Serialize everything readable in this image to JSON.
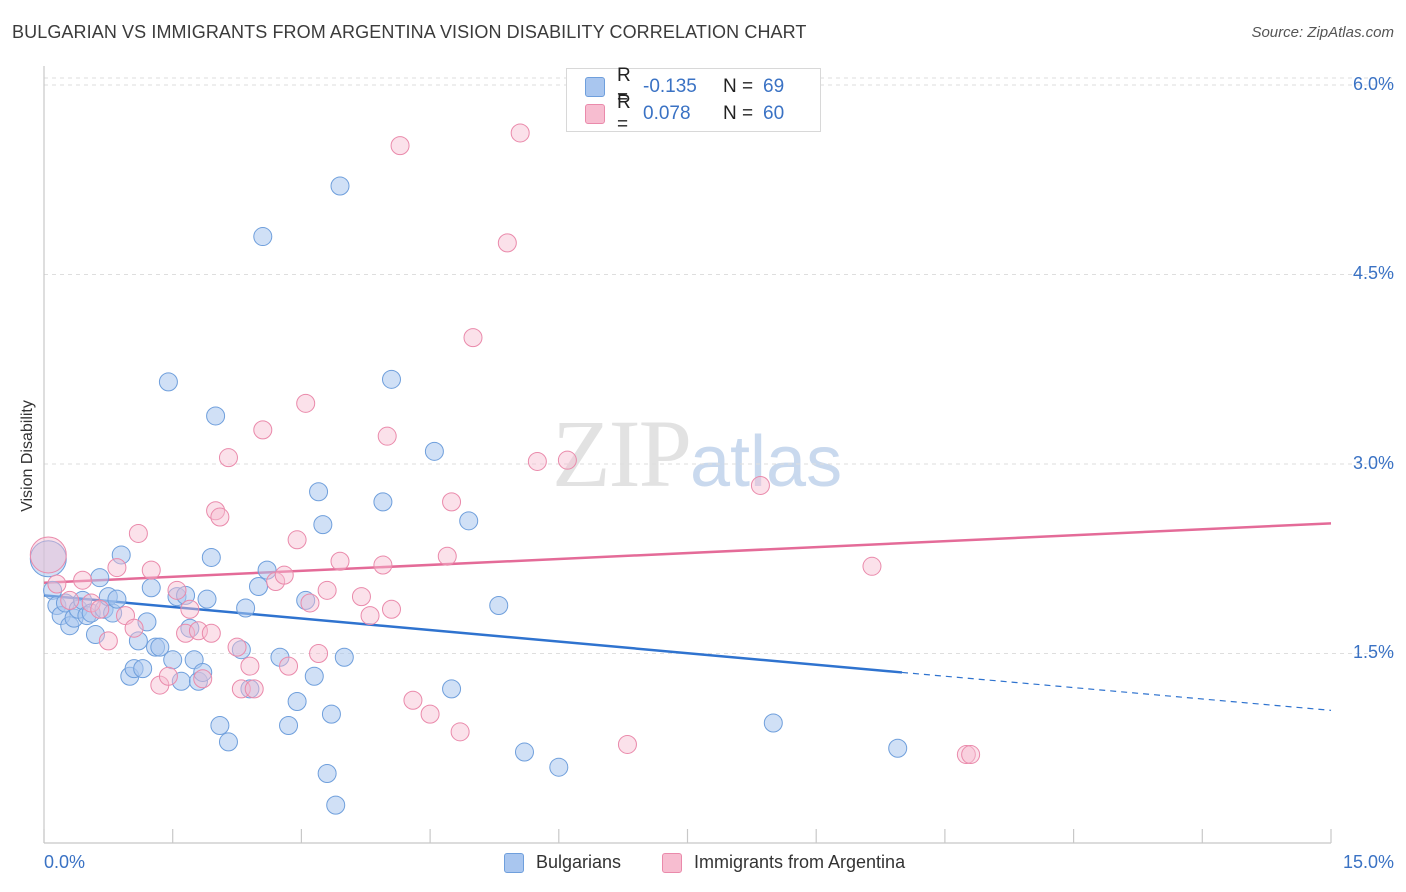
{
  "title": "BULGARIAN VS IMMIGRANTS FROM ARGENTINA VISION DISABILITY CORRELATION CHART",
  "source": "Source: ZipAtlas.com",
  "watermark": {
    "zip": "ZIP",
    "atlas": "atlas"
  },
  "legend_top": {
    "rows": [
      {
        "r_label": "R =",
        "r_value": "-0.135",
        "n_label": "N =",
        "n_value": "69"
      },
      {
        "r_label": "R =",
        "r_value": "0.078",
        "n_label": "N =",
        "n_value": "60"
      }
    ]
  },
  "legend_bottom": {
    "series1": "Bulgarians",
    "series2": "Immigrants from Argentina"
  },
  "colors": {
    "blue_fill": "#a9c6ef",
    "blue_stroke": "#6f9fdc",
    "blue_line": "#2f73cf",
    "pink_fill": "#f7bdd0",
    "pink_stroke": "#ea8aab",
    "pink_line": "#e46b98",
    "grid": "#dedede",
    "axis_text": "#3a72c4"
  },
  "chart_data": {
    "type": "scatter",
    "title": "BULGARIAN VS IMMIGRANTS FROM ARGENTINA VISION DISABILITY CORRELATION CHART",
    "xlabel": "",
    "ylabel": "Vision Disability",
    "xlim": [
      0,
      15
    ],
    "ylim": [
      0,
      6.15
    ],
    "x_tick_labels": [
      "0.0%",
      "15.0%"
    ],
    "y_ticks": [
      1.5,
      3.0,
      4.5,
      6.0
    ],
    "y_tick_labels": [
      "1.5%",
      "3.0%",
      "4.5%",
      "6.0%"
    ],
    "series": [
      {
        "name": "Bulgarians",
        "r": -0.135,
        "n": 69,
        "trend": {
          "x0": 0,
          "y0": 1.96,
          "x1": 10.0,
          "y1": 1.35,
          "dash_x1": 15.0,
          "dash_y1": 1.05
        },
        "points": [
          [
            0.05,
            2.25,
            18
          ],
          [
            0.1,
            2.0,
            9
          ],
          [
            0.15,
            1.88,
            9
          ],
          [
            0.2,
            1.8,
            9
          ],
          [
            0.25,
            1.9,
            9
          ],
          [
            0.3,
            1.72,
            9
          ],
          [
            0.35,
            1.78,
            9
          ],
          [
            0.4,
            1.85,
            9
          ],
          [
            0.45,
            1.92,
            9
          ],
          [
            0.5,
            1.8,
            9
          ],
          [
            0.55,
            1.82,
            9
          ],
          [
            0.6,
            1.65,
            9
          ],
          [
            0.65,
            2.1,
            9
          ],
          [
            0.7,
            1.85,
            9
          ],
          [
            0.75,
            1.95,
            9
          ],
          [
            0.8,
            1.82,
            9
          ],
          [
            0.85,
            1.93,
            9
          ],
          [
            0.9,
            2.28,
            9
          ],
          [
            1.0,
            1.32,
            9
          ],
          [
            1.05,
            1.38,
            9
          ],
          [
            1.1,
            1.6,
            9
          ],
          [
            1.15,
            1.38,
            9
          ],
          [
            1.2,
            1.75,
            9
          ],
          [
            1.25,
            2.02,
            9
          ],
          [
            1.3,
            1.55,
            9
          ],
          [
            1.35,
            1.55,
            9
          ],
          [
            1.45,
            3.65,
            9
          ],
          [
            1.5,
            1.45,
            9
          ],
          [
            1.55,
            1.95,
            9
          ],
          [
            1.6,
            1.28,
            9
          ],
          [
            1.65,
            1.96,
            9
          ],
          [
            1.7,
            1.7,
            9
          ],
          [
            1.75,
            1.45,
            9
          ],
          [
            1.8,
            1.28,
            9
          ],
          [
            1.85,
            1.35,
            9
          ],
          [
            1.9,
            1.93,
            9
          ],
          [
            1.95,
            2.26,
            9
          ],
          [
            2.0,
            3.38,
            9
          ],
          [
            2.05,
            0.93,
            9
          ],
          [
            2.15,
            0.8,
            9
          ],
          [
            2.3,
            1.53,
            9
          ],
          [
            2.35,
            1.86,
            9
          ],
          [
            2.4,
            1.22,
            9
          ],
          [
            2.5,
            2.03,
            9
          ],
          [
            2.55,
            4.8,
            9
          ],
          [
            2.6,
            2.16,
            9
          ],
          [
            2.75,
            1.47,
            9
          ],
          [
            2.85,
            0.93,
            9
          ],
          [
            2.95,
            1.12,
            9
          ],
          [
            3.05,
            1.92,
            9
          ],
          [
            3.15,
            1.32,
            9
          ],
          [
            3.2,
            2.78,
            9
          ],
          [
            3.25,
            2.52,
            9
          ],
          [
            3.3,
            0.55,
            9
          ],
          [
            3.35,
            1.02,
            9
          ],
          [
            3.4,
            0.3,
            9
          ],
          [
            3.45,
            5.2,
            9
          ],
          [
            3.5,
            1.47,
            9
          ],
          [
            3.95,
            2.7,
            9
          ],
          [
            4.05,
            3.67,
            9
          ],
          [
            4.55,
            3.1,
            9
          ],
          [
            4.75,
            1.22,
            9
          ],
          [
            4.95,
            2.55,
            9
          ],
          [
            5.3,
            1.88,
            9
          ],
          [
            5.6,
            0.72,
            9
          ],
          [
            6.0,
            0.6,
            9
          ],
          [
            8.5,
            0.95,
            9
          ],
          [
            9.95,
            0.75,
            9
          ]
        ]
      },
      {
        "name": "Immigrants from Argentina",
        "r": 0.078,
        "n": 60,
        "trend": {
          "x0": 0,
          "y0": 2.06,
          "x1": 15.0,
          "y1": 2.53
        },
        "points": [
          [
            0.05,
            2.28,
            18
          ],
          [
            0.15,
            2.05,
            9
          ],
          [
            0.3,
            1.92,
            9
          ],
          [
            0.45,
            2.08,
            9
          ],
          [
            0.55,
            1.9,
            9
          ],
          [
            0.65,
            1.85,
            9
          ],
          [
            0.75,
            1.6,
            9
          ],
          [
            0.85,
            2.18,
            9
          ],
          [
            0.95,
            1.8,
            9
          ],
          [
            1.05,
            1.7,
            9
          ],
          [
            1.1,
            2.45,
            9
          ],
          [
            1.25,
            2.16,
            9
          ],
          [
            1.35,
            1.25,
            9
          ],
          [
            1.45,
            1.32,
            9
          ],
          [
            1.55,
            2.0,
            9
          ],
          [
            1.65,
            1.66,
            9
          ],
          [
            1.7,
            1.85,
            9
          ],
          [
            1.8,
            1.68,
            9
          ],
          [
            1.85,
            1.3,
            9
          ],
          [
            1.95,
            1.66,
            9
          ],
          [
            2.0,
            2.63,
            9
          ],
          [
            2.05,
            2.58,
            9
          ],
          [
            2.15,
            3.05,
            9
          ],
          [
            2.25,
            1.55,
            9
          ],
          [
            2.3,
            1.22,
            9
          ],
          [
            2.4,
            1.4,
            9
          ],
          [
            2.45,
            1.22,
            9
          ],
          [
            2.55,
            3.27,
            9
          ],
          [
            2.7,
            2.07,
            9
          ],
          [
            2.8,
            2.12,
            9
          ],
          [
            2.85,
            1.4,
            9
          ],
          [
            2.95,
            2.4,
            9
          ],
          [
            3.05,
            3.48,
            9
          ],
          [
            3.1,
            1.9,
            9
          ],
          [
            3.2,
            1.5,
            9
          ],
          [
            3.3,
            2.0,
            9
          ],
          [
            3.45,
            2.23,
            9
          ],
          [
            3.7,
            1.95,
            9
          ],
          [
            3.8,
            1.8,
            9
          ],
          [
            3.95,
            2.2,
            9
          ],
          [
            4.0,
            3.22,
            9
          ],
          [
            4.05,
            1.85,
            9
          ],
          [
            4.15,
            5.52,
            9
          ],
          [
            4.3,
            1.13,
            9
          ],
          [
            4.5,
            1.02,
            9
          ],
          [
            4.7,
            2.27,
            9
          ],
          [
            4.75,
            2.7,
            9
          ],
          [
            4.85,
            0.88,
            9
          ],
          [
            5.0,
            4.0,
            9
          ],
          [
            5.4,
            4.75,
            9
          ],
          [
            5.55,
            5.62,
            9
          ],
          [
            5.75,
            3.02,
            9
          ],
          [
            6.1,
            3.03,
            9
          ],
          [
            6.8,
            0.78,
            9
          ],
          [
            8.35,
            2.83,
            9
          ],
          [
            9.65,
            2.19,
            9
          ],
          [
            10.75,
            0.7,
            9
          ],
          [
            10.8,
            0.7,
            9
          ]
        ]
      }
    ]
  }
}
